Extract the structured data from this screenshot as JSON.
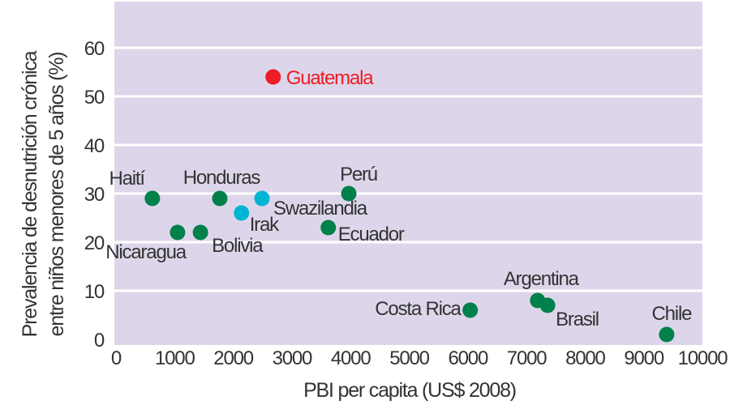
{
  "chart_data": {
    "type": "scatter",
    "title": "",
    "xlabel": "PBI per capita (US$ 2008)",
    "ylabel_lines": [
      "Prevalencia de desnutrición crónica",
      "entre niños menores de 5 años (%)"
    ],
    "xlim": [
      0,
      10000
    ],
    "ylim": [
      0,
      70
    ],
    "xticks": [
      "0",
      "1000",
      "2000",
      "3000",
      "4000",
      "5000",
      "6000",
      "7000",
      "8000",
      "9000",
      "10000"
    ],
    "yticks": [
      "0",
      "10",
      "20",
      "30",
      "40",
      "50",
      "60"
    ],
    "grid": "horizontal",
    "background_color": "#ddd6ea",
    "colors": {
      "highlight": "#ee1c25",
      "green": "#00804a",
      "cyan": "#00b4d4"
    },
    "points": [
      {
        "label": "Guatemala",
        "x": 2680,
        "y": 54,
        "color": "#ee1c25"
      },
      {
        "label": "Haití",
        "x": 620,
        "y": 29,
        "color": "#00804a"
      },
      {
        "label": "Nicaragua",
        "x": 1050,
        "y": 22,
        "color": "#00804a"
      },
      {
        "label": "Bolivia",
        "x": 1440,
        "y": 22,
        "color": "#00804a"
      },
      {
        "label": "Honduras",
        "x": 1770,
        "y": 29,
        "color": "#00804a"
      },
      {
        "label": "Irak",
        "x": 2140,
        "y": 26,
        "color": "#00b4d4"
      },
      {
        "label": "Swazilandia",
        "x": 2490,
        "y": 29,
        "color": "#00b4d4"
      },
      {
        "label": "Perú",
        "x": 3970,
        "y": 30,
        "color": "#00804a"
      },
      {
        "label": "Ecuador",
        "x": 3620,
        "y": 23,
        "color": "#00804a"
      },
      {
        "label": "Costa Rica",
        "x": 6040,
        "y": 6,
        "color": "#00804a"
      },
      {
        "label": "Argentina",
        "x": 7190,
        "y": 8,
        "color": "#00804a"
      },
      {
        "label": "Brasil",
        "x": 7360,
        "y": 7,
        "color": "#00804a"
      },
      {
        "label": "Chile",
        "x": 9390,
        "y": 1,
        "color": "#00804a"
      }
    ]
  }
}
